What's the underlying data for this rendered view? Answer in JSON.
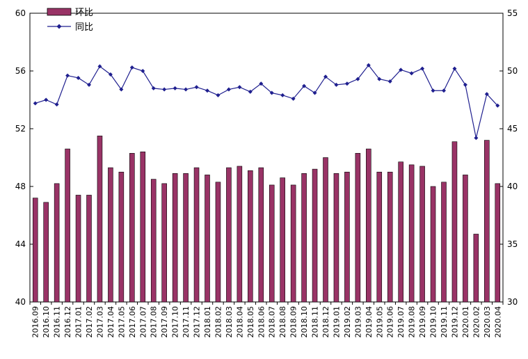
{
  "chart_data": {
    "type": "bar",
    "legend_position": "top-left",
    "grid": false,
    "categories": [
      "2016.09",
      "2016.10",
      "2016.11",
      "2016.12",
      "2017.01",
      "2017.02",
      "2017.03",
      "2017.04",
      "2017.05",
      "2017.06",
      "2017.07",
      "2017.08",
      "2017.09",
      "2017.10",
      "2017.11",
      "2017.12",
      "2018.01",
      "2018.02",
      "2018.03",
      "2018.04",
      "2018.05",
      "2018.06",
      "2018.07",
      "2018.08",
      "2018.09",
      "2018.10",
      "2018.11",
      "2018.12",
      "2019.01",
      "2019.02",
      "2019.03",
      "2019.04",
      "2019.05",
      "2019.06",
      "2019.07",
      "2019.08",
      "2019.09",
      "2019.10",
      "2019.11",
      "2019.12",
      "2020.01",
      "2020.02",
      "2020.03",
      "2020.04"
    ],
    "series": [
      {
        "name": "环比",
        "kind": "bar",
        "axis": "left",
        "color": "#993366",
        "values": [
          47.2,
          46.9,
          48.2,
          50.6,
          47.4,
          47.4,
          51.5,
          49.3,
          49.0,
          50.3,
          50.4,
          48.5,
          48.2,
          48.9,
          48.9,
          49.3,
          48.8,
          48.3,
          49.3,
          49.4,
          49.1,
          49.3,
          48.1,
          48.6,
          48.1,
          48.9,
          49.2,
          50.0,
          48.9,
          49.0,
          50.3,
          50.6,
          49.0,
          49.0,
          49.7,
          49.5,
          49.4,
          48.0,
          48.3,
          51.1,
          48.8,
          44.7,
          51.2,
          48.2
        ]
      },
      {
        "name": "同比",
        "kind": "line",
        "axis": "right",
        "color": "#1f1f8f",
        "values": [
          47.2,
          47.5,
          47.1,
          49.6,
          49.4,
          48.8,
          50.4,
          49.7,
          48.4,
          50.3,
          50.0,
          48.5,
          48.4,
          48.5,
          48.4,
          48.6,
          48.3,
          47.9,
          48.4,
          48.6,
          48.2,
          48.9,
          48.1,
          47.9,
          47.6,
          48.7,
          48.1,
          49.5,
          48.8,
          48.9,
          49.3,
          50.5,
          49.3,
          49.1,
          50.1,
          49.8,
          50.2,
          48.3,
          48.3,
          50.2,
          48.8,
          44.2,
          48.0,
          47.0
        ]
      }
    ],
    "y_left": {
      "min": 40,
      "max": 60,
      "ticks": [
        "40",
        "44",
        "48",
        "52",
        "56",
        "60"
      ]
    },
    "y_right": {
      "min": 30,
      "max": 55,
      "ticks": [
        "30",
        "35",
        "40",
        "45",
        "50",
        "55"
      ]
    }
  }
}
